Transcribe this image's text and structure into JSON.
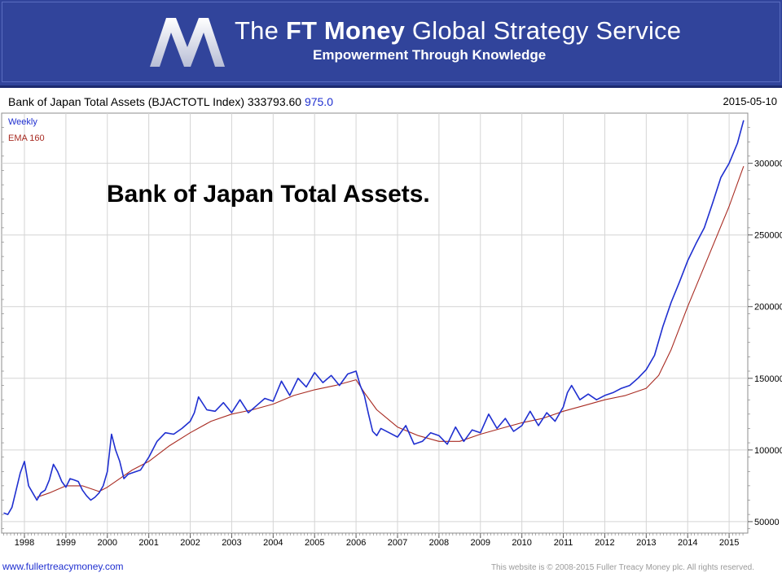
{
  "banner": {
    "title_prefix": "The ",
    "title_bold": "FT Money",
    "title_suffix": " Global Strategy Service",
    "tagline": "Empowerment Through Knowledge",
    "colors": {
      "background": "#31449b",
      "text": "#ffffff"
    }
  },
  "chart_header": {
    "name": "Bank of Japan Total Assets (BJACTOTL Index) 333793.60",
    "change": "975.0",
    "date": "2015-05-10"
  },
  "legend": {
    "weekly": "Weekly",
    "ema": "EMA 160"
  },
  "annotation": "Bank of Japan Total Assets.",
  "footer": {
    "site": "www.fullertreacymoney.com",
    "copyright": "This website is © 2008-2015 Fuller Treacy Money plc. All rights reserved."
  },
  "chart_data": {
    "type": "line",
    "title": "Bank of Japan Total Assets (BJACTOTL Index)",
    "x_ticks": [
      "1998",
      "1999",
      "2000",
      "2001",
      "2002",
      "2003",
      "2004",
      "2005",
      "2006",
      "2007",
      "2008",
      "2009",
      "2010",
      "2011",
      "2012",
      "2013",
      "2014",
      "2015"
    ],
    "y_ticks": [
      50000,
      100000,
      150000,
      200000,
      250000,
      300000
    ],
    "y_tick_labels": [
      "50000",
      "100000",
      "150000",
      "200000",
      "250000",
      "300000"
    ],
    "xlim": [
      1997.45,
      2015.45
    ],
    "ylim": [
      42000,
      335000
    ],
    "grid": true,
    "colors": {
      "weekly": "#1f2fd0",
      "ema": "#a82b22",
      "grid": "#d4d4d4"
    },
    "series": [
      {
        "name": "Weekly",
        "x": [
          1997.5,
          1997.6,
          1997.7,
          1997.8,
          1997.9,
          1998.0,
          1998.1,
          1998.2,
          1998.3,
          1998.4,
          1998.5,
          1998.6,
          1998.7,
          1998.8,
          1998.9,
          1999.0,
          1999.1,
          1999.2,
          1999.3,
          1999.4,
          1999.5,
          1999.6,
          1999.7,
          1999.8,
          1999.9,
          2000.0,
          2000.1,
          2000.2,
          2000.3,
          2000.4,
          2000.5,
          2000.6,
          2000.8,
          2001.0,
          2001.2,
          2001.4,
          2001.6,
          2001.8,
          2002.0,
          2002.1,
          2002.2,
          2002.4,
          2002.6,
          2002.8,
          2003.0,
          2003.2,
          2003.4,
          2003.6,
          2003.8,
          2004.0,
          2004.2,
          2004.4,
          2004.6,
          2004.8,
          2005.0,
          2005.2,
          2005.4,
          2005.6,
          2005.8,
          2006.0,
          2006.1,
          2006.2,
          2006.3,
          2006.4,
          2006.5,
          2006.6,
          2006.8,
          2007.0,
          2007.2,
          2007.4,
          2007.6,
          2007.8,
          2008.0,
          2008.2,
          2008.4,
          2008.6,
          2008.8,
          2009.0,
          2009.2,
          2009.4,
          2009.6,
          2009.8,
          2010.0,
          2010.2,
          2010.4,
          2010.6,
          2010.8,
          2011.0,
          2011.1,
          2011.2,
          2011.4,
          2011.6,
          2011.8,
          2012.0,
          2012.2,
          2012.4,
          2012.6,
          2012.8,
          2013.0,
          2013.2,
          2013.4,
          2013.6,
          2013.8,
          2014.0,
          2014.2,
          2014.4,
          2014.6,
          2014.8,
          2015.0,
          2015.2,
          2015.35
        ],
        "y": [
          56000,
          55000,
          60000,
          72000,
          84000,
          92000,
          75000,
          70000,
          65000,
          70000,
          72000,
          79000,
          90000,
          85000,
          78000,
          74000,
          80000,
          79000,
          78000,
          72000,
          68000,
          65000,
          67000,
          70000,
          75000,
          85000,
          111000,
          100000,
          92000,
          80000,
          83000,
          84000,
          86000,
          95000,
          106000,
          112000,
          111000,
          115000,
          120000,
          126000,
          137000,
          128000,
          127000,
          133000,
          126000,
          135000,
          126000,
          131000,
          136000,
          134000,
          148000,
          138000,
          150000,
          144000,
          154000,
          147000,
          152000,
          145000,
          153000,
          155000,
          145000,
          138000,
          125000,
          113000,
          110000,
          115000,
          112000,
          109000,
          117000,
          104000,
          106000,
          112000,
          110000,
          104000,
          116000,
          106000,
          114000,
          112000,
          125000,
          115000,
          122000,
          113000,
          117000,
          127000,
          117000,
          126000,
          120000,
          130000,
          140000,
          145000,
          135000,
          139000,
          135000,
          138000,
          140000,
          143000,
          145000,
          150000,
          156000,
          166000,
          186000,
          203000,
          217000,
          232000,
          244000,
          255000,
          272000,
          290000,
          300000,
          314000,
          330000
        ]
      },
      {
        "name": "EMA 160",
        "x": [
          1998.3,
          1998.6,
          1999.0,
          1999.4,
          1999.8,
          2000.0,
          2000.3,
          2000.6,
          2001.0,
          2001.5,
          2002.0,
          2002.5,
          2003.0,
          2003.5,
          2004.0,
          2004.5,
          2005.0,
          2005.5,
          2006.0,
          2006.2,
          2006.5,
          2007.0,
          2007.5,
          2008.0,
          2008.5,
          2009.0,
          2009.5,
          2010.0,
          2010.5,
          2011.0,
          2011.5,
          2012.0,
          2012.5,
          2013.0,
          2013.3,
          2013.6,
          2014.0,
          2014.5,
          2015.0,
          2015.35
        ],
        "y": [
          67000,
          70000,
          75000,
          75000,
          71000,
          74000,
          80000,
          86000,
          92000,
          103000,
          112000,
          120000,
          125000,
          128000,
          132000,
          138000,
          142000,
          145000,
          149000,
          140000,
          128000,
          116000,
          110000,
          106000,
          106000,
          111000,
          115000,
          119000,
          122000,
          127000,
          131000,
          135000,
          138000,
          143000,
          152000,
          170000,
          200000,
          235000,
          270000,
          298000
        ]
      }
    ]
  }
}
